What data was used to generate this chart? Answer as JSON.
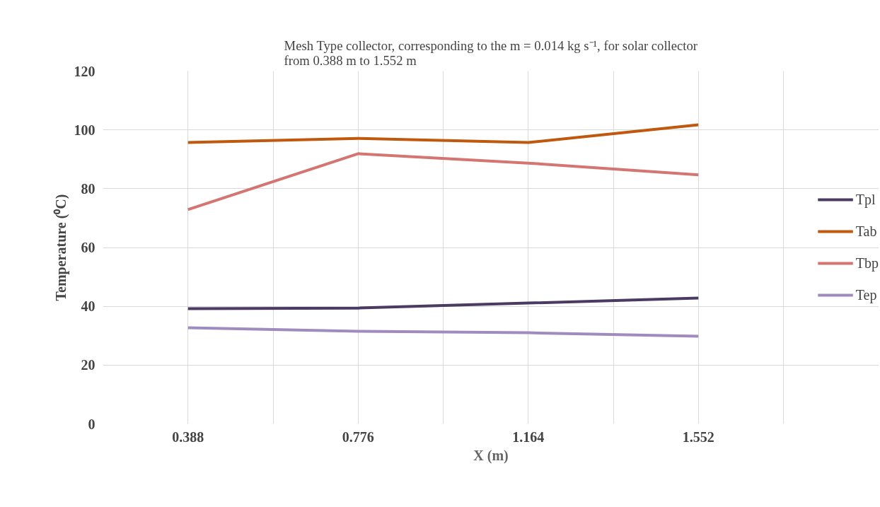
{
  "chart_data": {
    "type": "line",
    "title": "Mesh Type collector, corresponding to the m = 0.014 kg s⁻¹, for solar collector\nfrom 0.388 m to 1.552 m",
    "xlabel": "X (m)",
    "ylabel": "Temperature (⁰C)",
    "categories": [
      "0.388",
      "0.776",
      "1.164",
      "1.552"
    ],
    "series": [
      {
        "name": "Tpl",
        "color": "#4b3a62",
        "values": [
          39.2,
          39.4,
          41.1,
          42.8
        ]
      },
      {
        "name": "Tab",
        "color": "#c0580e",
        "values": [
          95.7,
          97.1,
          95.7,
          101.7
        ]
      },
      {
        "name": "Tbp",
        "color": "#d47572",
        "values": [
          72.9,
          91.9,
          88.7,
          84.7
        ]
      },
      {
        "name": "Tep",
        "color": "#a08bbf",
        "values": [
          32.7,
          31.5,
          31.0,
          29.8
        ]
      }
    ],
    "ylim": [
      0,
      120
    ],
    "yticks": [
      0,
      20,
      40,
      60,
      80,
      100,
      120
    ],
    "grid": true,
    "legend": "right",
    "marker": "none",
    "line_style": "solid"
  }
}
